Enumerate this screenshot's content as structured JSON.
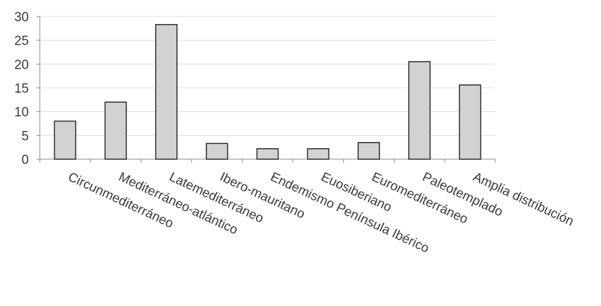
{
  "chart_data": {
    "type": "bar",
    "categories": [
      "Circunmediterráneo",
      "Mediterráneo-atlántico",
      "Latemediterráneo",
      "Ibero-mauritano",
      "Endemismo Península Ibérico",
      "Euosiberiano",
      "Euromediterráneo",
      "Paleotemplado",
      "Amplia distribución"
    ],
    "values": [
      8,
      12,
      28.3,
      3.3,
      2.2,
      2.2,
      3.5,
      20.5,
      15.6
    ],
    "ylim": [
      0,
      30
    ],
    "yticks": [
      0,
      5,
      10,
      15,
      20,
      25,
      30
    ],
    "grid": true,
    "colors": {
      "bar_fill": "#d2d2d2",
      "bar_stroke": "#2a2a2a",
      "grid": "#dcdcdc",
      "axis": "#888888"
    }
  }
}
